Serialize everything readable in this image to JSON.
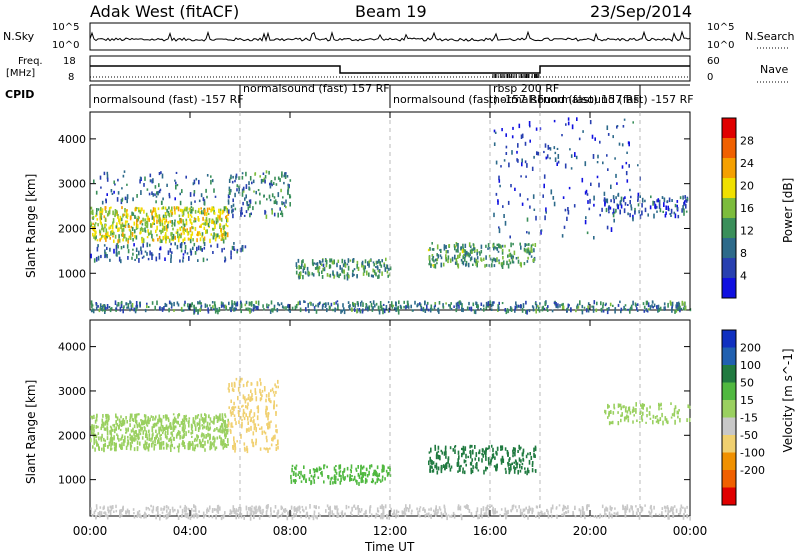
{
  "header": {
    "station": "Adak West (fitACF)",
    "beam": "Beam 19",
    "date": "23/Sep/2014"
  },
  "top_panels": {
    "nsky_label": "N.Sky",
    "nsearch_label": "N.Search",
    "freq_label_1": "Freq.",
    "freq_label_2": "[MHz]",
    "nave_label": "Nave",
    "cpid_label": "CPID",
    "nsky_ticks": [
      "10^5",
      "10^0"
    ],
    "nsearch_ticks": [
      "10^5",
      "10^0"
    ],
    "freq_ticks": [
      "18",
      "8"
    ],
    "nave_ticks": [
      "60",
      "0"
    ]
  },
  "cpid_segments": [
    {
      "label": "normalsound (fast) -157 RF",
      "start_h": 0,
      "end_h": 6.0
    },
    {
      "label": "normalsound (fast) 157 RF",
      "start_h": 6.0,
      "end_h": 12.0
    },
    {
      "label": "normalsound (fast) -157 RF",
      "start_h": 12.0,
      "end_h": 16.0
    },
    {
      "label": "rbsp 200 RF",
      "start_h": 16.0,
      "end_h": 18.0
    },
    {
      "label": "normalsound (fast) 157 RF",
      "start_h": 16.0,
      "end_h": 18.0
    },
    {
      "label": "normalsound (fast) -157 RF",
      "start_h": 18.0,
      "end_h": 22.0
    }
  ],
  "chart_data": [
    {
      "type": "heatmap",
      "title": "Power",
      "xlabel": "",
      "ylabel": "Slant Range [km]",
      "xlim": [
        0,
        24
      ],
      "ylim": [
        180,
        4600
      ],
      "x_ticks": [],
      "y_ticks": [
        1000,
        2000,
        3000,
        4000
      ],
      "colorbar": {
        "label": "Power [dB]",
        "ticks": [
          4,
          8,
          12,
          16,
          20,
          24,
          28
        ],
        "range": [
          0,
          32
        ],
        "colors": [
          "#1010e0",
          "#2840b0",
          "#2d6a8a",
          "#3a8f5a",
          "#7cbc3c",
          "#f0e000",
          "#f5a000",
          "#f06000",
          "#e00000"
        ]
      },
      "regions": [
        {
          "x0": 0,
          "x1": 5.5,
          "y0": 1750,
          "y1": 2500,
          "value": 18,
          "density": 0.7
        },
        {
          "x0": 0,
          "x1": 6.2,
          "y0": 1300,
          "y1": 1700,
          "value": 8,
          "density": 0.25
        },
        {
          "x0": 0,
          "x1": 5.0,
          "y0": 2600,
          "y1": 3300,
          "value": 8,
          "density": 0.15
        },
        {
          "x0": 5.5,
          "x1": 8.0,
          "y0": 2300,
          "y1": 3300,
          "value": 10,
          "density": 0.3
        },
        {
          "x0": 8.2,
          "x1": 12.0,
          "y0": 950,
          "y1": 1350,
          "value": 12,
          "density": 0.6
        },
        {
          "x0": 13.5,
          "x1": 17.8,
          "y0": 1200,
          "y1": 1700,
          "value": 13,
          "density": 0.55
        },
        {
          "x0": 20.5,
          "x1": 24.0,
          "y0": 2300,
          "y1": 2750,
          "value": 7,
          "density": 0.35
        },
        {
          "x0": 16.0,
          "x1": 22.0,
          "y0": 1800,
          "y1": 4500,
          "value": 6,
          "density": 0.06
        },
        {
          "x0": 0,
          "x1": 24,
          "y0": 180,
          "y1": 400,
          "value": 10,
          "density": 0.6
        }
      ]
    },
    {
      "type": "heatmap",
      "title": "Velocity",
      "xlabel": "Time UT",
      "ylabel": "Slant Range [km]",
      "xlim": [
        0,
        24
      ],
      "ylim": [
        180,
        4600
      ],
      "x_ticks": [
        "00:00",
        "04:00",
        "08:00",
        "12:00",
        "16:00",
        "20:00",
        "00:00"
      ],
      "y_ticks": [
        1000,
        2000,
        3000,
        4000
      ],
      "colorbar": {
        "label": "Velocity [m s^-1]",
        "ticks": [
          200,
          100,
          50,
          15,
          -15,
          -50,
          -100,
          -200
        ],
        "colors": [
          "#1030c0",
          "#2060b0",
          "#207a40",
          "#50b840",
          "#9ad060",
          "#c8c8c8",
          "#f0d070",
          "#f09000",
          "#f06000",
          "#e00000"
        ]
      },
      "regions": [
        {
          "x0": 0,
          "x1": 5.5,
          "y0": 1700,
          "y1": 2500,
          "value": 0,
          "density": 0.75
        },
        {
          "x0": 5.5,
          "x1": 7.5,
          "y0": 1700,
          "y1": 3300,
          "value": -60,
          "density": 0.35
        },
        {
          "x0": 8.0,
          "x1": 12.0,
          "y0": 950,
          "y1": 1350,
          "value": 30,
          "density": 0.6
        },
        {
          "x0": 13.5,
          "x1": 17.8,
          "y0": 1200,
          "y1": 1800,
          "value": 60,
          "density": 0.5
        },
        {
          "x0": 20.5,
          "x1": 24.0,
          "y0": 2300,
          "y1": 2750,
          "value": 0,
          "density": 0.35
        },
        {
          "x0": 0,
          "x1": 24,
          "y0": 180,
          "y1": 450,
          "value": -40,
          "density": 0.55
        }
      ]
    }
  ]
}
